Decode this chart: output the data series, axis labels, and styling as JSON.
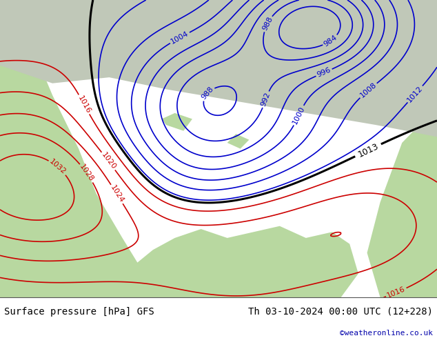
{
  "title_left": "Surface pressure [hPa] GFS",
  "title_right": "Th 03-10-2024 00:00 UTC (12+228)",
  "watermark": "©weatheronline.co.uk",
  "sea_color": "#cce0f0",
  "land_color_green": "#b8d8a0",
  "land_color_upper": "#c0c8b8",
  "contour_blue": "#0000cc",
  "contour_red": "#cc0000",
  "contour_black": "#000000",
  "label_fontsize": 8,
  "title_fontsize": 10,
  "watermark_color": "#0000aa",
  "pressure_levels_blue": [
    984,
    988,
    992,
    996,
    1000,
    1004,
    1008,
    1012
  ],
  "pressure_levels_red": [
    1016,
    1020,
    1024,
    1028,
    1032
  ],
  "pressure_levels_black": [
    1013
  ]
}
